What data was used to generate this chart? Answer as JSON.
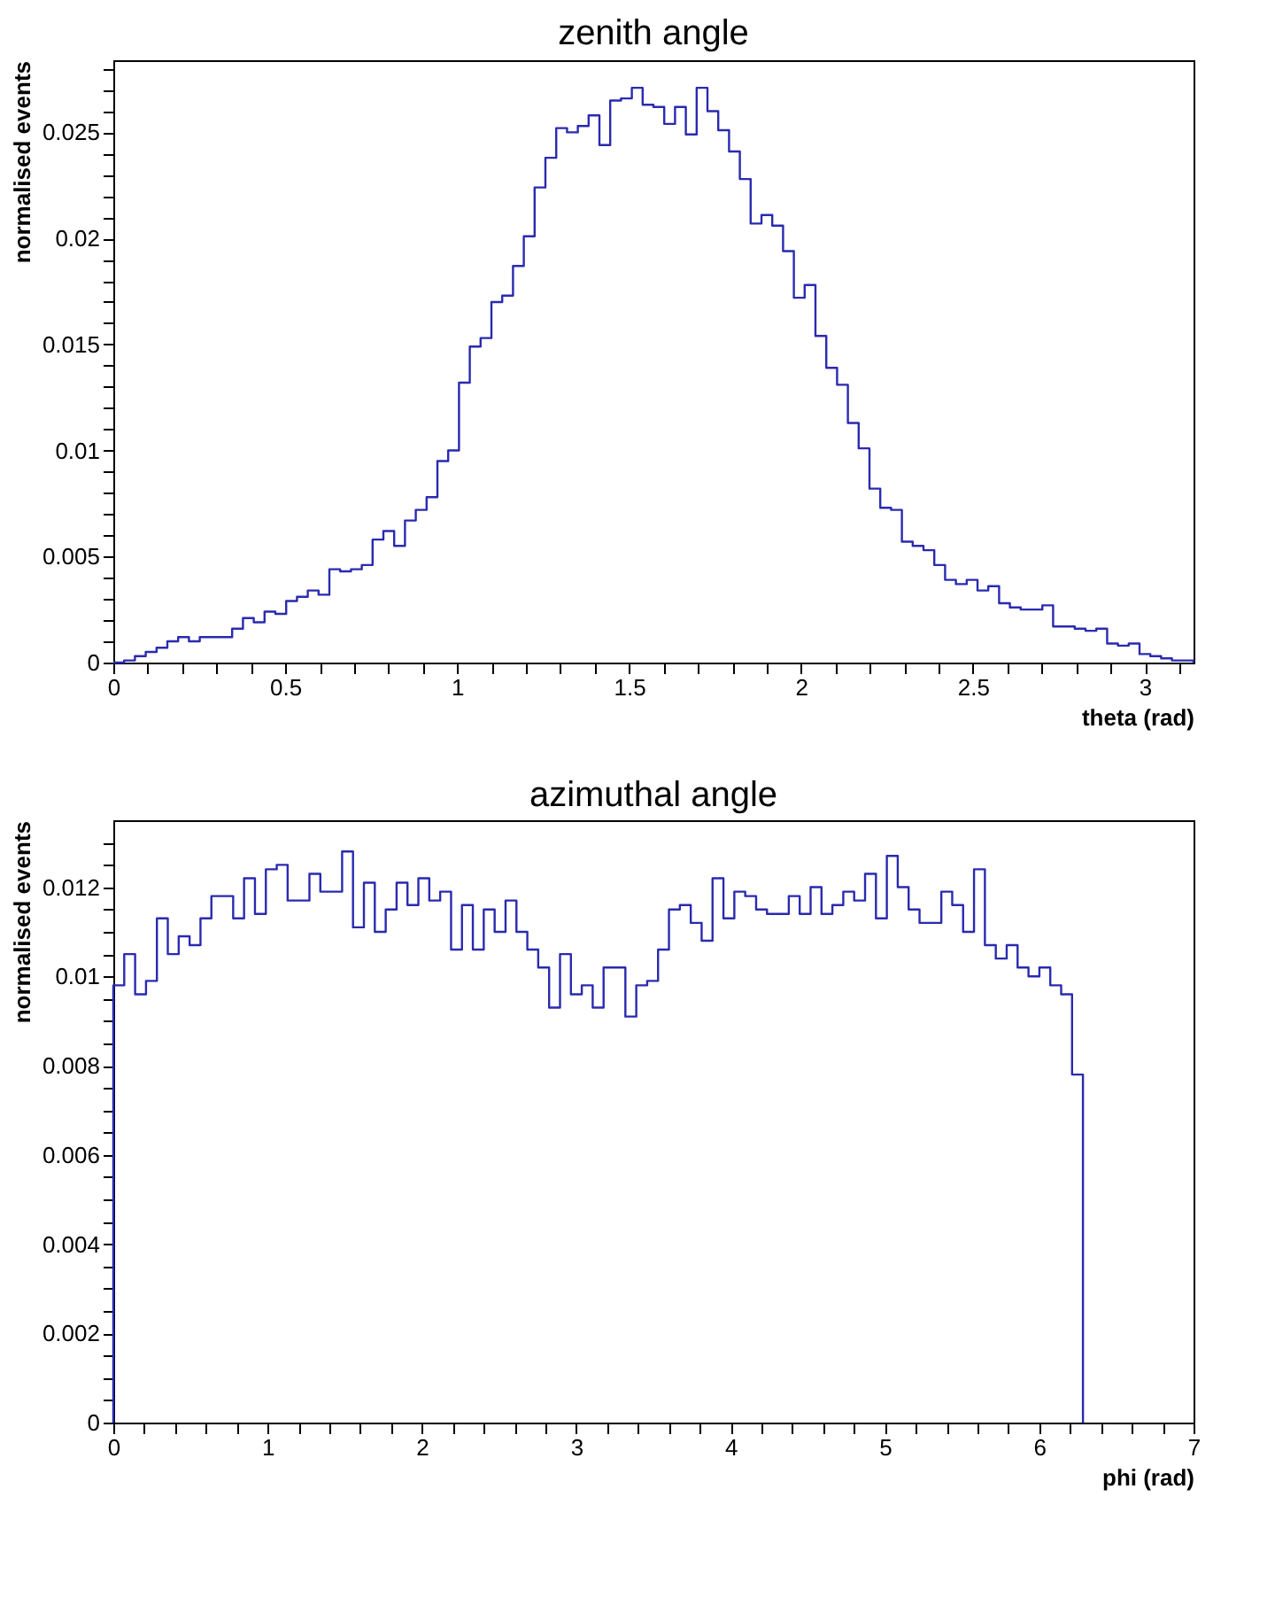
{
  "chart_data": [
    {
      "type": "histogram",
      "title": "zenith angle",
      "xlabel": "theta (rad)",
      "ylabel": "normalised events",
      "color": "#2a2ab0",
      "bins": [
        0,
        0.0314,
        0.0628,
        0.0942,
        0.1257,
        0.1571,
        0.1885,
        0.2199,
        0.2513,
        0.2827,
        0.3142,
        0.3456,
        0.377,
        0.4084,
        0.4398,
        0.4712,
        0.5027,
        0.5341,
        0.5655,
        0.5969,
        0.6283,
        0.6597,
        0.6912,
        0.7226,
        0.754,
        0.7854,
        0.8168,
        0.8482,
        0.8796,
        0.9111,
        0.9425,
        0.9739,
        1.0053,
        1.0367,
        1.0681,
        1.0996,
        1.131,
        1.1624,
        1.1938,
        1.2252,
        1.2566,
        1.2881,
        1.3195,
        1.3509,
        1.3823,
        1.4137,
        1.4451,
        1.4765,
        1.508,
        1.5394,
        1.5708,
        1.6022,
        1.6336,
        1.665,
        1.6965,
        1.7279,
        1.7593,
        1.7907,
        1.8221,
        1.8535,
        1.885,
        1.9164,
        1.9478,
        1.9792,
        2.0106,
        2.042,
        2.0735,
        2.1049,
        2.1363,
        2.1677,
        2.1991,
        2.2305,
        2.2619,
        2.2934,
        2.3248,
        2.3562,
        2.3876,
        2.419,
        2.4504,
        2.4819,
        2.5133,
        2.5447,
        2.5761,
        2.6075,
        2.6389,
        2.6704,
        2.7018,
        2.7332,
        2.7646,
        2.796,
        2.8274,
        2.8588,
        2.8903,
        2.9217,
        2.9531,
        2.9845,
        3.0159,
        3.0473,
        3.0788,
        3.1102,
        3.1416
      ],
      "values": [
        0,
        0.0001,
        0.0003,
        0.0005,
        0.0007,
        0.001,
        0.0012,
        0.001,
        0.0012,
        0.0012,
        0.0012,
        0.0016,
        0.0021,
        0.0019,
        0.0024,
        0.0023,
        0.0029,
        0.0031,
        0.0034,
        0.0032,
        0.0044,
        0.0043,
        0.0044,
        0.0046,
        0.0058,
        0.0062,
        0.0055,
        0.0067,
        0.0072,
        0.0078,
        0.0095,
        0.01,
        0.0132,
        0.0149,
        0.0153,
        0.017,
        0.0173,
        0.0187,
        0.0201,
        0.0224,
        0.0238,
        0.0252,
        0.025,
        0.0253,
        0.0258,
        0.0244,
        0.0265,
        0.0266,
        0.0271,
        0.0263,
        0.0262,
        0.0254,
        0.0262,
        0.0249,
        0.0271,
        0.026,
        0.0251,
        0.0241,
        0.0228,
        0.0207,
        0.0211,
        0.0206,
        0.0194,
        0.0172,
        0.0178,
        0.0154,
        0.0139,
        0.0131,
        0.0113,
        0.0101,
        0.0082,
        0.0073,
        0.0072,
        0.0057,
        0.0055,
        0.0053,
        0.0046,
        0.0039,
        0.0037,
        0.0039,
        0.0034,
        0.0036,
        0.0028,
        0.0026,
        0.0025,
        0.0025,
        0.0027,
        0.0017,
        0.0017,
        0.0016,
        0.0015,
        0.0016,
        0.0009,
        0.0008,
        0.0009,
        0.0004,
        0.0003,
        0.0002,
        0.0001,
        0.0001
      ],
      "xlim": [
        0,
        3.1416
      ],
      "ylim": [
        0,
        0.0284
      ],
      "xticks": [
        0,
        {
          "value": 0.1,
          "label": null
        },
        {
          "value": 0.2,
          "label": null
        },
        {
          "value": 0.3,
          "label": null
        },
        {
          "value": 0.4,
          "label": null
        },
        0.5,
        {
          "value": 0.6,
          "label": null
        },
        {
          "value": 0.7,
          "label": null
        },
        {
          "value": 0.8,
          "label": null
        },
        {
          "value": 0.9,
          "label": null
        },
        1,
        {
          "value": 1.1,
          "label": null
        },
        {
          "value": 1.2,
          "label": null
        },
        {
          "value": 1.3,
          "label": null
        },
        {
          "value": 1.4,
          "label": null
        },
        1.5,
        {
          "value": 1.6,
          "label": null
        },
        {
          "value": 1.7,
          "label": null
        },
        {
          "value": 1.8,
          "label": null
        },
        {
          "value": 1.9,
          "label": null
        },
        2,
        {
          "value": 2.1,
          "label": null
        },
        {
          "value": 2.2,
          "label": null
        },
        {
          "value": 2.3,
          "label": null
        },
        {
          "value": 2.4,
          "label": null
        },
        2.5,
        {
          "value": 2.6,
          "label": null
        },
        {
          "value": 2.7,
          "label": null
        },
        {
          "value": 2.8,
          "label": null
        },
        {
          "value": 2.9,
          "label": null
        },
        3,
        {
          "value": 3.1,
          "label": null
        }
      ],
      "yticks": [
        0,
        {
          "value": 0.001,
          "label": null
        },
        {
          "value": 0.002,
          "label": null
        },
        {
          "value": 0.003,
          "label": null
        },
        {
          "value": 0.004,
          "label": null
        },
        0.005,
        {
          "value": 0.006,
          "label": null
        },
        {
          "value": 0.007,
          "label": null
        },
        {
          "value": 0.008,
          "label": null
        },
        {
          "value": 0.009,
          "label": null
        },
        0.01,
        {
          "value": 0.011,
          "label": null
        },
        {
          "value": 0.012,
          "label": null
        },
        {
          "value": 0.013,
          "label": null
        },
        {
          "value": 0.014,
          "label": null
        },
        0.015,
        {
          "value": 0.016,
          "label": null
        },
        {
          "value": 0.017,
          "label": null
        },
        {
          "value": 0.018,
          "label": null
        },
        {
          "value": 0.019,
          "label": null
        },
        0.02,
        {
          "value": 0.021,
          "label": null
        },
        {
          "value": 0.022,
          "label": null
        },
        {
          "value": 0.023,
          "label": null
        },
        {
          "value": 0.024,
          "label": null
        },
        0.025,
        {
          "value": 0.026,
          "label": null
        },
        {
          "value": 0.027,
          "label": null
        },
        {
          "value": 0.028,
          "label": null
        }
      ]
    },
    {
      "type": "histogram",
      "title": "azimuthal angle",
      "xlabel": "phi (rad)",
      "ylabel": "normalised events",
      "color": "#2a2ab0",
      "bins": [
        0,
        0.0706,
        0.1412,
        0.2118,
        0.2824,
        0.353,
        0.4236,
        0.4942,
        0.5648,
        0.6354,
        0.706,
        0.7766,
        0.8472,
        0.9178,
        0.9884,
        1.059,
        1.1296,
        1.2002,
        1.2708,
        1.3414,
        1.412,
        1.4826,
        1.5532,
        1.6238,
        1.6944,
        1.765,
        1.8356,
        1.9062,
        1.9768,
        2.0474,
        2.118,
        2.1886,
        2.2592,
        2.3298,
        2.4004,
        2.471,
        2.5416,
        2.6122,
        2.6828,
        2.7534,
        2.824,
        2.8946,
        2.9652,
        3.0358,
        3.1064,
        3.177,
        3.2476,
        3.3182,
        3.3888,
        3.4594,
        3.53,
        3.6006,
        3.6712,
        3.7418,
        3.8124,
        3.883,
        3.9536,
        4.0242,
        4.0948,
        4.1654,
        4.236,
        4.3066,
        4.3772,
        4.4478,
        4.5184,
        4.589,
        4.6596,
        4.7302,
        4.8008,
        4.8714,
        4.942,
        5.0126,
        5.0832,
        5.1538,
        5.2244,
        5.295,
        5.3656,
        5.4362,
        5.5068,
        5.5774,
        5.648,
        5.7186,
        5.7892,
        5.8598,
        5.9304,
        6.001,
        6.0716,
        6.1422,
        6.2128,
        6.2834
      ],
      "values": [
        0.0098,
        0.0105,
        0.0096,
        0.0099,
        0.0113,
        0.0105,
        0.0109,
        0.0107,
        0.0113,
        0.0118,
        0.0118,
        0.0113,
        0.0122,
        0.0114,
        0.0124,
        0.0125,
        0.0117,
        0.0117,
        0.0123,
        0.0119,
        0.0119,
        0.0128,
        0.0111,
        0.0121,
        0.011,
        0.0115,
        0.0121,
        0.0116,
        0.0122,
        0.0117,
        0.0119,
        0.0106,
        0.0116,
        0.0106,
        0.0115,
        0.011,
        0.0117,
        0.011,
        0.0106,
        0.0102,
        0.0093,
        0.0105,
        0.0096,
        0.0098,
        0.0093,
        0.0102,
        0.0102,
        0.0091,
        0.0098,
        0.0099,
        0.0106,
        0.0115,
        0.0116,
        0.0112,
        0.0108,
        0.0122,
        0.0113,
        0.0119,
        0.0118,
        0.0115,
        0.0114,
        0.0114,
        0.0118,
        0.0114,
        0.012,
        0.0114,
        0.0116,
        0.0119,
        0.0117,
        0.0123,
        0.0113,
        0.0127,
        0.012,
        0.0115,
        0.0112,
        0.0112,
        0.0119,
        0.0116,
        0.011,
        0.0124,
        0.0107,
        0.0104,
        0.0107,
        0.0102,
        0.01,
        0.0102,
        0.0098,
        0.0096,
        0.0078
      ],
      "xlim": [
        0,
        7
      ],
      "ylim": [
        0,
        0.0135
      ],
      "xticks": [
        0,
        {
          "value": 0.2,
          "label": null
        },
        {
          "value": 0.4,
          "label": null
        },
        {
          "value": 0.6,
          "label": null
        },
        {
          "value": 0.8,
          "label": null
        },
        1,
        {
          "value": 1.2,
          "label": null
        },
        {
          "value": 1.4,
          "label": null
        },
        {
          "value": 1.6,
          "label": null
        },
        {
          "value": 1.8,
          "label": null
        },
        2,
        {
          "value": 2.2,
          "label": null
        },
        {
          "value": 2.4,
          "label": null
        },
        {
          "value": 2.6,
          "label": null
        },
        {
          "value": 2.8,
          "label": null
        },
        3,
        {
          "value": 3.2,
          "label": null
        },
        {
          "value": 3.4,
          "label": null
        },
        {
          "value": 3.6,
          "label": null
        },
        {
          "value": 3.8,
          "label": null
        },
        4,
        {
          "value": 4.2,
          "label": null
        },
        {
          "value": 4.4,
          "label": null
        },
        {
          "value": 4.6,
          "label": null
        },
        {
          "value": 4.8,
          "label": null
        },
        5,
        {
          "value": 5.2,
          "label": null
        },
        {
          "value": 5.4,
          "label": null
        },
        {
          "value": 5.6,
          "label": null
        },
        {
          "value": 5.8,
          "label": null
        },
        6,
        {
          "value": 6.2,
          "label": null
        },
        {
          "value": 6.4,
          "label": null
        },
        {
          "value": 6.6,
          "label": null
        },
        {
          "value": 6.8,
          "label": null
        },
        7
      ],
      "yticks": [
        0,
        {
          "value": 0.0005,
          "label": null
        },
        {
          "value": 0.001,
          "label": null
        },
        {
          "value": 0.0015,
          "label": null
        },
        0.002,
        {
          "value": 0.0025,
          "label": null
        },
        {
          "value": 0.003,
          "label": null
        },
        {
          "value": 0.0035,
          "label": null
        },
        0.004,
        {
          "value": 0.0045,
          "label": null
        },
        {
          "value": 0.005,
          "label": null
        },
        {
          "value": 0.0055,
          "label": null
        },
        0.006,
        {
          "value": 0.0065,
          "label": null
        },
        {
          "value": 0.007,
          "label": null
        },
        {
          "value": 0.0075,
          "label": null
        },
        0.008,
        {
          "value": 0.0085,
          "label": null
        },
        {
          "value": 0.009,
          "label": null
        },
        {
          "value": 0.0095,
          "label": null
        },
        0.01,
        {
          "value": 0.0105,
          "label": null
        },
        {
          "value": 0.011,
          "label": null
        },
        {
          "value": 0.0115,
          "label": null
        },
        0.012,
        {
          "value": 0.0125,
          "label": null
        },
        {
          "value": 0.013,
          "label": null
        }
      ]
    }
  ]
}
